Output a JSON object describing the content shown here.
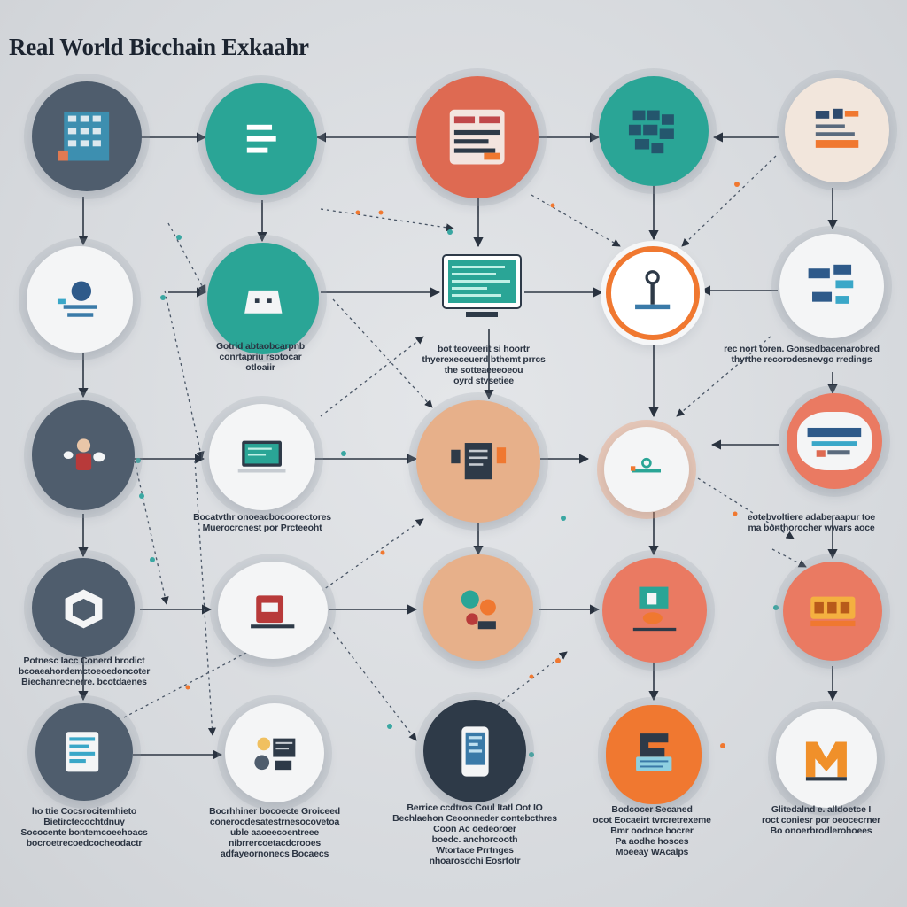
{
  "title": "Real World Bicchain Exkaahr",
  "colors": {
    "teal": "#2aa596",
    "red": "#de6a52",
    "orange": "#f07830",
    "slate": "#4f5d6d",
    "dark": "#2e3a48",
    "white": "#f4f5f6",
    "peach": "#f2e6dc",
    "coral": "#ea7a62",
    "tan": "#e7b08a"
  },
  "nodes": [
    {
      "id": "n11",
      "color": "#4f5d6d",
      "icon": "server-rack-icon"
    },
    {
      "id": "n12",
      "color": "#2aa596",
      "icon": "menu-lines-icon"
    },
    {
      "id": "n13",
      "color": "#de6a52",
      "icon": "dashboard-panels-icon"
    },
    {
      "id": "n14",
      "color": "#2aa596",
      "icon": "blocks-stack-icon"
    },
    {
      "id": "n15",
      "color": "#f2e6dc",
      "icon": "data-cards-icon"
    },
    {
      "id": "n21",
      "color": "#f4f5f6",
      "icon": "puzzle-icon"
    },
    {
      "id": "n22",
      "color": "#2aa596",
      "icon": "wallet-icon"
    },
    {
      "id": "n24",
      "color": "#f07830",
      "icon": "key-icon"
    },
    {
      "id": "n25",
      "color": "#f4f5f6",
      "icon": "chart-panels-icon"
    },
    {
      "id": "n31",
      "color": "#4f5d6d",
      "icon": "user-icon"
    },
    {
      "id": "n32",
      "color": "#f4f5f6",
      "icon": "laptop-icon"
    },
    {
      "id": "n33",
      "color": "#e7b08a",
      "icon": "document-icon"
    },
    {
      "id": "n34",
      "color": "#f4f5f6",
      "icon": "chain-link-icon"
    },
    {
      "id": "n35",
      "color": "#ea7a62",
      "icon": "badge-icon"
    },
    {
      "id": "n41",
      "color": "#4f5d6d",
      "icon": "cube-icon"
    },
    {
      "id": "n42",
      "color": "#f4f5f6",
      "icon": "storefront-icon"
    },
    {
      "id": "n43",
      "color": "#e7b08a",
      "icon": "gears-icon"
    },
    {
      "id": "n44",
      "color": "#ea7a62",
      "icon": "contract-icon"
    },
    {
      "id": "n45",
      "color": "#ea7a62",
      "icon": "coins-icon"
    },
    {
      "id": "n51",
      "color": "#4f5d6d",
      "icon": "tablet-icon"
    },
    {
      "id": "n52",
      "color": "#f4f5f6",
      "icon": "exchange-icon"
    },
    {
      "id": "n53",
      "color": "#2e3a48",
      "icon": "phone-icon"
    },
    {
      "id": "n54",
      "color": "#f07830",
      "icon": "bank-card-icon"
    },
    {
      "id": "n55",
      "color": "#f4f5f6",
      "icon": "m-logo-icon"
    }
  ],
  "captions": {
    "c22": [
      "Gotrid abtaobcarpnb",
      "conrtapriu rsotocar",
      "otloaiir"
    ],
    "c23": [
      "bot teoveerit si hoortr",
      "thyerexeceuerd bthemt prrcs",
      "the sotteaeeeoeou",
      "oyrd stvsetiee"
    ],
    "c25": [
      "rec nort toren. Gonsedbacenarobred",
      "thyrthe recorodesnevgo rredings"
    ],
    "c32": [
      "Bocatvthr onoeacbocoorectores",
      "Muerocrcnest por Prcteeoht"
    ],
    "c35": [
      "eotebvoltiere adaberaapur toe",
      "ma bonthorocher wwars aoce"
    ],
    "c41": [
      "Potnesc Iacc Conerd brodict",
      "bcoaeahordemctoeoedoncoter",
      "Biechanrecnerre. bcotdaenes"
    ],
    "c51": [
      "ho ttie Cocsrocitemhieto",
      "Bietirctecochtdnuy",
      "Sococente bontemcoeehoacs",
      "bocroetrecoedcocheodactr"
    ],
    "c52": [
      "Bocrhhiner bocoecte Groiceed",
      "conerocdesatestrnesocovetoa",
      "uble aaoeecoentreee",
      "nibrrercoetacdcrooes",
      "adfayeornonecs Bocaecs"
    ],
    "c53": [
      "Berrice ccdtros Coul Itatl Oot IO",
      "Bechlaehon Ceoonneder contebcthres",
      "Coon Ac oedeoroer",
      "boedc. anchorcooth",
      "Wtortace Prrtnges",
      "nhoarosdchi Eosrtotr"
    ],
    "c54": [
      "Bodcocer Secaned",
      "ocot Eocaeirt tvrcretrexeme",
      "Bmr oodnce bocrer",
      "Pa aodhe hosces",
      "Moeeay WAcalps"
    ],
    "c55": [
      "Glitedalnd e. alldoetce I",
      "roct coniesr por oeocecrner",
      "Bo onoerbrodlerohoees"
    ]
  }
}
